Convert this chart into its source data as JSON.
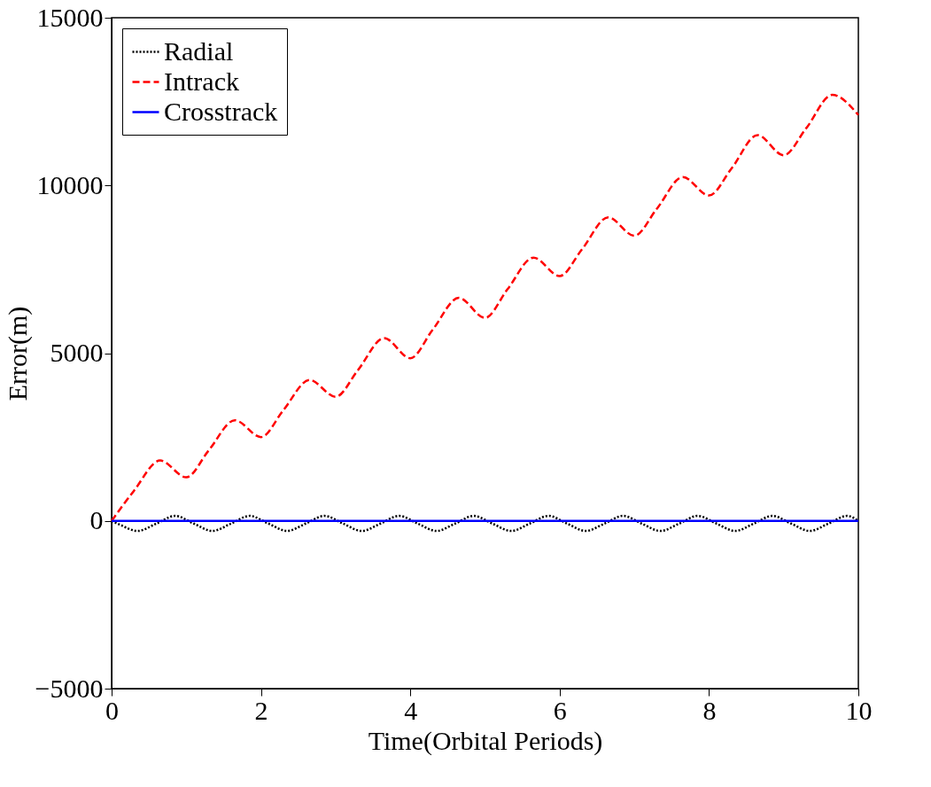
{
  "chart_data": {
    "type": "line",
    "xlabel": "Time(Orbital Periods)",
    "ylabel": "Error(m)",
    "xlim": [
      0,
      10
    ],
    "ylim": [
      -5000,
      15000
    ],
    "xticks": [
      0,
      2,
      4,
      6,
      8,
      10
    ],
    "yticks": [
      -5000,
      0,
      5000,
      10000,
      15000
    ],
    "grid": false,
    "legend": "top left",
    "marker": "none",
    "series": [
      {
        "name": "Radial",
        "color": "#000000",
        "line_style": "dotted",
        "x": [
          0,
          0.1,
          0.35,
          0.6,
          0.85,
          1.1,
          1.35,
          1.6,
          1.85,
          2.1,
          2.35,
          2.6,
          2.85,
          3.1,
          3.35,
          3.6,
          3.85,
          4.1,
          4.35,
          4.6,
          4.85,
          5.1,
          5.35,
          5.6,
          5.85,
          6.1,
          6.35,
          6.6,
          6.85,
          7.1,
          7.35,
          7.6,
          7.85,
          8.1,
          8.35,
          8.6,
          8.85,
          9.1,
          9.35,
          9.6,
          9.85,
          10
        ],
        "values": [
          0,
          -100,
          -300,
          -80,
          150,
          -80,
          -300,
          -80,
          150,
          -80,
          -300,
          -80,
          150,
          -80,
          -300,
          -80,
          150,
          -80,
          -300,
          -80,
          150,
          -80,
          -300,
          -80,
          150,
          -80,
          -300,
          -80,
          150,
          -80,
          -300,
          -80,
          150,
          -80,
          -300,
          -80,
          150,
          -80,
          -300,
          -80,
          150,
          0
        ]
      },
      {
        "name": "Intrack",
        "color": "#ff0000",
        "line_style": "dashed",
        "x": [
          0,
          0.3,
          0.65,
          1.0,
          1.3,
          1.65,
          2.0,
          2.3,
          2.65,
          3.0,
          3.3,
          3.65,
          4.0,
          4.3,
          4.65,
          5.0,
          5.3,
          5.65,
          6.0,
          6.3,
          6.65,
          7.0,
          7.3,
          7.65,
          8.0,
          8.3,
          8.65,
          9.0,
          9.3,
          9.65,
          10.0
        ],
        "values": [
          0,
          900,
          1800,
          1300,
          2100,
          3000,
          2500,
          3300,
          4200,
          3700,
          4500,
          5450,
          4850,
          5700,
          6650,
          6050,
          6900,
          7850,
          7300,
          8100,
          9050,
          8500,
          9300,
          10250,
          9700,
          10500,
          11500,
          10900,
          11700,
          12700,
          12100
        ]
      },
      {
        "name": "Crosstrack",
        "color": "#0000ff",
        "line_style": "solid",
        "x": [
          0,
          1,
          2,
          3,
          4,
          5,
          6,
          7,
          8,
          9,
          10
        ],
        "values": [
          0,
          0,
          0,
          0,
          0,
          0,
          0,
          0,
          0,
          0,
          0
        ]
      }
    ]
  }
}
